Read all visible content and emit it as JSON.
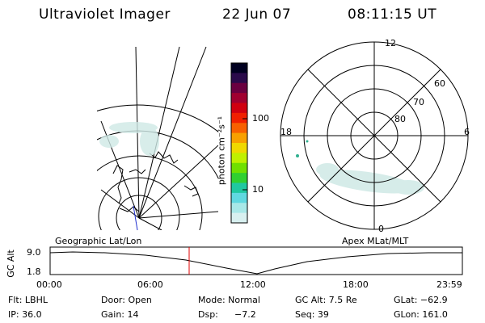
{
  "header": {
    "instrument": "Ultraviolet Imager",
    "date": "22 Jun 07",
    "time": "08:11:15 UT"
  },
  "colorbar": {
    "unit_label": "photon cm⁻²s⁻¹",
    "ticks": [
      "100",
      "10"
    ],
    "colors": [
      "#000020",
      "#2a0a4a",
      "#6a0040",
      "#a00030",
      "#d00010",
      "#f02000",
      "#f86000",
      "#f8a000",
      "#f0d800",
      "#c0f000",
      "#70e000",
      "#30d030",
      "#20c8a0",
      "#60d8e0",
      "#a8e8e8",
      "#d8f0f0"
    ]
  },
  "polar_plot": {
    "mlt_labels": [
      "12",
      "18",
      "6",
      "0"
    ],
    "lat_labels": [
      "60",
      "70",
      "80"
    ]
  },
  "timeline": {
    "axis_label": "GC Alt",
    "y_labels": [
      "9.0",
      "1.8"
    ],
    "left_caption": "Geographic Lat/Lon",
    "right_caption": "Apex MLat/MLT",
    "x_labels": [
      "00:00",
      "06:00",
      "12:00",
      "18:00",
      "23:59"
    ],
    "current_time_color": "#e00000"
  },
  "info": {
    "filter": "Flt: LBHL",
    "door": "Door: Open",
    "mode": "Mode: Normal",
    "gc_alt": "GC Alt: 7.5 Re",
    "glat": "GLat: −62.9",
    "ip": "IP: 36.0",
    "gain": "Gain: 14",
    "dsp_label": "Dsp:",
    "dsp_value": "−7.2",
    "seq": "Seq: 39",
    "glon": "GLon: 161.0"
  }
}
